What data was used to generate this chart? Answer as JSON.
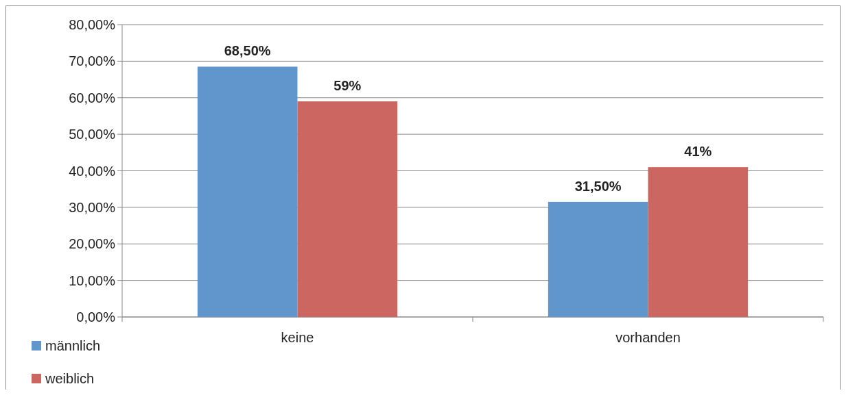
{
  "chart_data": {
    "type": "bar",
    "categories": [
      "keine",
      "vorhanden"
    ],
    "series": [
      {
        "name": "männlich",
        "color": "#6096cb",
        "values": [
          68.5,
          31.5
        ],
        "value_labels": [
          "68,50%",
          "31,50%"
        ]
      },
      {
        "name": "weiblich",
        "color": "#cb6660",
        "values": [
          59,
          41
        ],
        "value_labels": [
          "59%",
          "41%"
        ]
      }
    ],
    "ylim": [
      0,
      80
    ],
    "yticks": [
      {
        "value": 0,
        "label": "0,00%"
      },
      {
        "value": 10,
        "label": "10,00%"
      },
      {
        "value": 20,
        "label": "20,00%"
      },
      {
        "value": 30,
        "label": "30,00%"
      },
      {
        "value": 40,
        "label": "40,00%"
      },
      {
        "value": 50,
        "label": "50,00%"
      },
      {
        "value": 60,
        "label": "60,00%"
      },
      {
        "value": 70,
        "label": "70,00%"
      },
      {
        "value": 80,
        "label": "80,00%"
      }
    ],
    "grid": "y",
    "legend": "bottom left"
  }
}
